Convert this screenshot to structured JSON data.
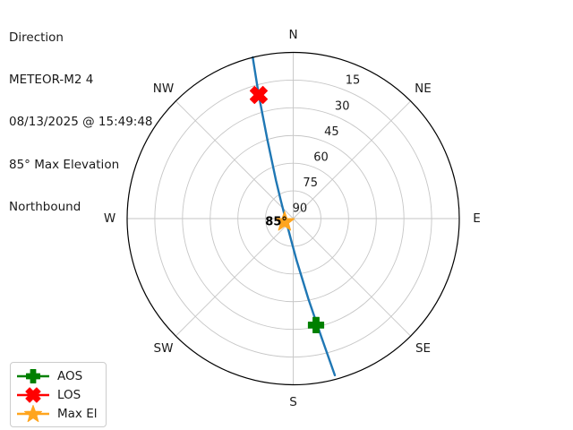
{
  "header": {
    "lines": [
      "Direction",
      "METEOR-M2 4",
      "08/13/2025 @ 15:49:48",
      "85° Max Elevation",
      "Northbound"
    ]
  },
  "legend": {
    "items": [
      {
        "id": "aos",
        "label": "AOS",
        "marker": "plus",
        "color": "#008000"
      },
      {
        "id": "los",
        "label": "LOS",
        "marker": "x",
        "color": "#ff0000"
      },
      {
        "id": "max-el",
        "label": "Max El",
        "marker": "star",
        "color": "#ffa51e"
      }
    ]
  },
  "chart_data": {
    "type": "polar_sky_track",
    "title": "Direction",
    "satellite": "METEOR-M2 4",
    "timestamp": "08/13/2025 @ 15:49:48",
    "max_elevation_deg": 85,
    "pass_direction": "Northbound",
    "compass_labels": [
      "N",
      "NE",
      "E",
      "SE",
      "S",
      "SW",
      "W",
      "NW"
    ],
    "elevation_rings_deg": [
      15,
      30,
      45,
      60,
      75,
      90
    ],
    "elevation_tick_azimuth_deg": 22.5,
    "track_azel_deg": [
      [
        165.1,
        2.2
      ],
      [
        166.6,
        24.0
      ],
      [
        169.3,
        45.6
      ],
      [
        175.4,
        67.4
      ],
      [
        185.4,
        78.2
      ],
      [
        254.0,
        85.9
      ],
      [
        325.5,
        78.2
      ],
      [
        335.6,
        67.4
      ],
      [
        341.8,
        45.2
      ],
      [
        344.4,
        20.5
      ],
      [
        345.9,
        0.0
      ]
    ],
    "markers": {
      "aos": {
        "az_deg": 167.9,
        "el_deg": 31.0
      },
      "los": {
        "az_deg": 344.4,
        "el_deg": 20.5
      },
      "max_el": {
        "az_deg": 249.4,
        "el_deg": 85.0,
        "label": "85°"
      }
    },
    "colors": {
      "track": "#1f77b4",
      "aos": "#008000",
      "los": "#ff0000",
      "max_el": "#ffa51e",
      "grid": "#c6c6c6",
      "horizon": "#000000"
    }
  }
}
